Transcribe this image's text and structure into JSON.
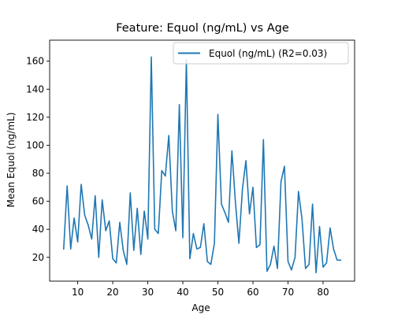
{
  "chart_data": {
    "type": "line",
    "title": "Feature: Equol (ng/mL) vs Age",
    "xlabel": "Age",
    "ylabel": "Mean Equol (ng/mL)",
    "xlim": [
      2,
      89
    ],
    "ylim": [
      3,
      175
    ],
    "xticks": [
      10,
      20,
      30,
      40,
      50,
      60,
      70,
      80
    ],
    "yticks": [
      20,
      40,
      60,
      80,
      100,
      120,
      140,
      160
    ],
    "grid": false,
    "legend_position": "top-right",
    "color": "#1f77b4",
    "series": [
      {
        "name": "Equol (ng/mL) (R2=0.03)",
        "x": [
          6,
          7,
          8,
          9,
          10,
          11,
          12,
          13,
          14,
          15,
          16,
          17,
          18,
          19,
          20,
          21,
          22,
          23,
          24,
          25,
          26,
          27,
          28,
          29,
          30,
          31,
          32,
          33,
          34,
          35,
          36,
          37,
          38,
          39,
          40,
          41,
          42,
          43,
          44,
          45,
          46,
          47,
          48,
          49,
          50,
          51,
          52,
          53,
          54,
          55,
          56,
          57,
          58,
          59,
          60,
          61,
          62,
          63,
          64,
          65,
          66,
          67,
          68,
          69,
          70,
          71,
          72,
          73,
          74,
          75,
          76,
          77,
          78,
          79,
          80,
          81,
          82,
          83,
          84,
          85
        ],
        "y": [
          26,
          71,
          26,
          48,
          31,
          72,
          50,
          43,
          33,
          64,
          20,
          61,
          39,
          46,
          19,
          16,
          45,
          25,
          15,
          66,
          25,
          55,
          22,
          53,
          33,
          163,
          40,
          37,
          82,
          78,
          107,
          53,
          39,
          129,
          34,
          161,
          19,
          37,
          26,
          27,
          44,
          17,
          15,
          30,
          122,
          58,
          52,
          45,
          96,
          59,
          30,
          69,
          89,
          51,
          70,
          27,
          29,
          104,
          10,
          15,
          28,
          12,
          74,
          85,
          17,
          11,
          20,
          67,
          47,
          12,
          15,
          58,
          9,
          42,
          13,
          16,
          41,
          26,
          18,
          18
        ]
      }
    ]
  }
}
